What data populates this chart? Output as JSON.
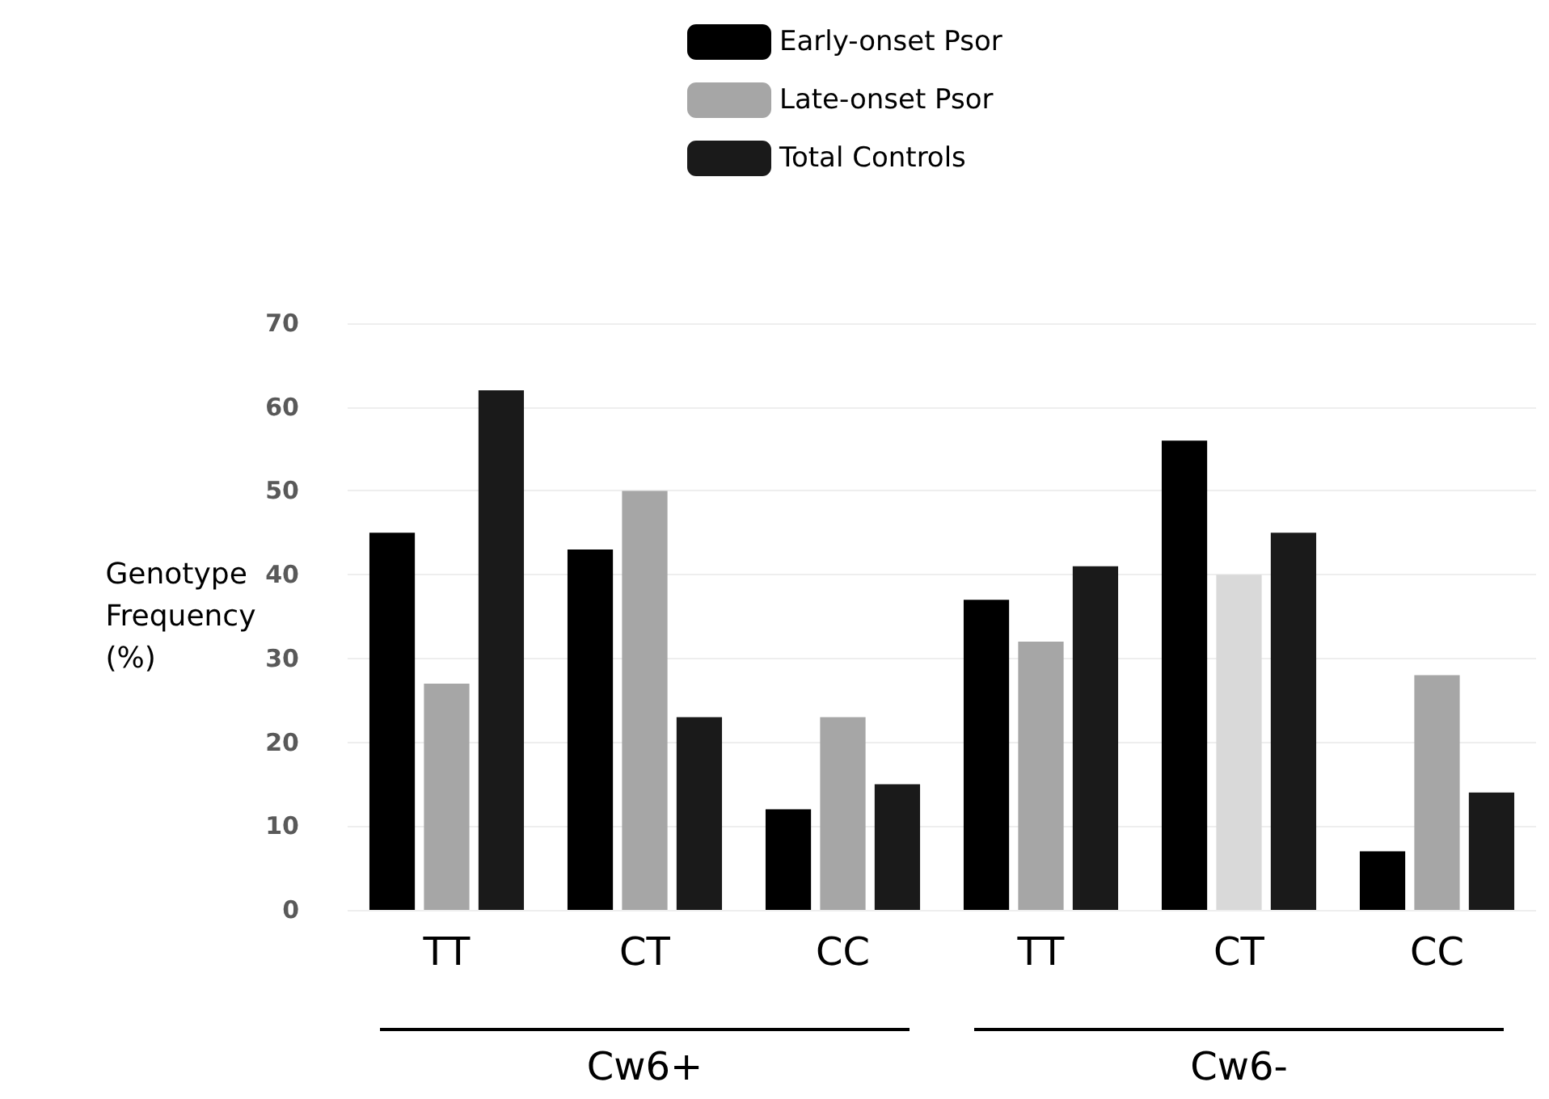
{
  "chart_data": {
    "type": "bar",
    "ylabel": "Genotype Frequency (%)",
    "categories": [
      "TT",
      "CT",
      "CC",
      "TT",
      "CT",
      "CC"
    ],
    "series": [
      {
        "name": "Early-onset Psor",
        "color": "#000000",
        "values": [
          45,
          43,
          12,
          37,
          56,
          7
        ]
      },
      {
        "name": "Late-onset Psor",
        "color": "#a6a6a6",
        "colors": [
          "#a6a6a6",
          "#a6a6a6",
          "#a6a6a6",
          "#a6a6a6",
          "#d9d9d9",
          "#a6a6a6"
        ],
        "values": [
          27,
          50,
          23,
          32,
          40,
          28
        ]
      },
      {
        "name": "Total Controls",
        "color": "#1a1a1a",
        "values": [
          62,
          23,
          15,
          41,
          45,
          14
        ]
      }
    ],
    "ylim": [
      0,
      70
    ],
    "yticks": [
      0,
      10,
      20,
      30,
      40,
      50,
      60,
      70
    ],
    "grid": "y",
    "legend": "top",
    "annotations": [
      "Cw6+",
      "Cw6-"
    ]
  }
}
